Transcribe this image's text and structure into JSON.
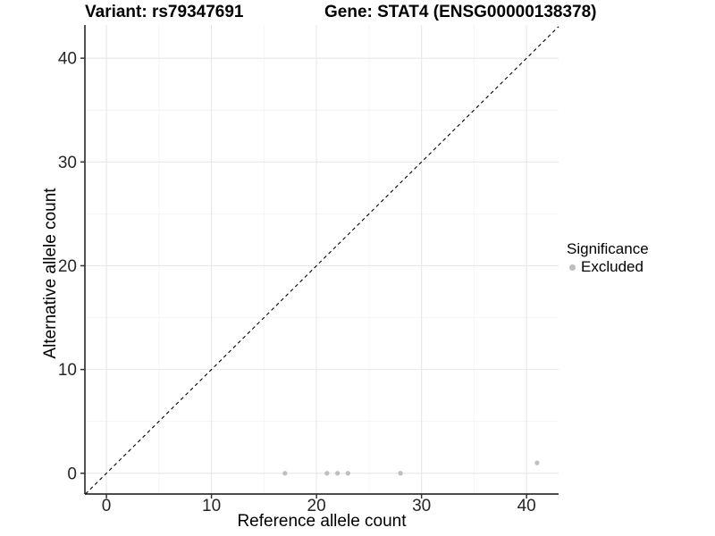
{
  "titles": {
    "variant": "Variant: rs79347691",
    "gene": "Gene: STAT4 (ENSG00000138378)"
  },
  "colors": {
    "background": "#ffffff",
    "point": "#bebebe",
    "identity_line": "#000000",
    "axis_line": "#333333",
    "tick": "#333333",
    "grid_major": "#e8e8e8",
    "grid_minor": "#f4f4f4",
    "tick_label": "#262626",
    "title_text": "#000000"
  },
  "chart_data": {
    "type": "scatter",
    "titles": {
      "variant": "Variant: rs79347691",
      "gene": "Gene: STAT4 (ENSG00000138378)"
    },
    "xlabel": "Reference allele count",
    "ylabel": "Alternative allele count",
    "xlim": [
      -2.05,
      43.05
    ],
    "ylim": [
      -2.0,
      43.2
    ],
    "x_ticks": [
      0,
      10,
      20,
      30,
      40
    ],
    "y_ticks": [
      0,
      10,
      20,
      30,
      40
    ],
    "x_minor_gridlines": [
      5,
      15,
      25,
      35
    ],
    "y_minor_gridlines": [
      5,
      15,
      25,
      35
    ],
    "grid": true,
    "identity_line": {
      "slope": 1,
      "intercept": 0,
      "style": "dashed",
      "color": "#000000"
    },
    "legend": {
      "title": "Significance",
      "position": "right",
      "items": [
        {
          "label": "Excluded",
          "color": "#bebebe"
        }
      ]
    },
    "series": [
      {
        "name": "Excluded",
        "color": "#bebebe",
        "marker": "circle",
        "points": [
          [
            17,
            0
          ],
          [
            21,
            0
          ],
          [
            22,
            0
          ],
          [
            23,
            0
          ],
          [
            28,
            0
          ],
          [
            41,
            1
          ]
        ]
      }
    ]
  }
}
